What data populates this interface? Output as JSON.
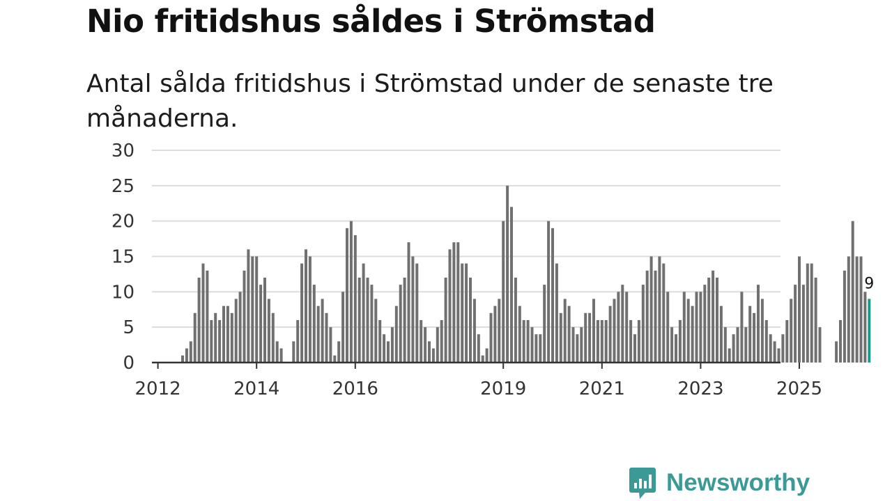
{
  "colors": {
    "bar": "#707070",
    "highlight": "#1d9a8f",
    "grid": "#dcdcdc",
    "axis": "#333333",
    "brand": "#3c9a96"
  },
  "brand": {
    "name": "Newsworthy",
    "icon": "bar-chart-speech-bubble-icon"
  },
  "chart_data": {
    "type": "bar",
    "title": "Nio fritidshus såldes i Strömstad",
    "subtitle": "Antal sålda fritidshus i Strömstad under de senaste tre månaderna.",
    "xlabel": "",
    "ylabel": "",
    "ylim": [
      0,
      30
    ],
    "yticks": [
      0,
      5,
      10,
      15,
      20,
      25,
      30
    ],
    "x_tick_labels": [
      "2012",
      "2014",
      "2016",
      "2019",
      "2021",
      "2023",
      "2025"
    ],
    "grid": true,
    "start_period": "2011-09",
    "frequency": "monthly",
    "highlight_label": "9",
    "values": [
      0,
      0,
      0,
      0,
      0,
      0,
      0,
      0,
      0,
      0,
      1,
      2,
      3,
      7,
      12,
      14,
      13,
      6,
      7,
      6,
      8,
      8,
      7,
      9,
      10,
      13,
      16,
      15,
      15,
      11,
      12,
      9,
      7,
      3,
      2,
      0,
      0,
      3,
      6,
      14,
      16,
      15,
      11,
      8,
      9,
      7,
      5,
      1,
      3,
      10,
      19,
      20,
      18,
      12,
      14,
      12,
      11,
      9,
      6,
      4,
      3,
      5,
      8,
      11,
      12,
      17,
      15,
      14,
      6,
      5,
      3,
      2,
      5,
      6,
      12,
      16,
      17,
      17,
      14,
      14,
      12,
      9,
      4,
      1,
      2,
      7,
      8,
      9,
      20,
      25,
      22,
      12,
      8,
      6,
      6,
      5,
      4,
      4,
      11,
      20,
      19,
      14,
      7,
      9,
      8,
      5,
      4,
      5,
      7,
      7,
      9,
      6,
      6,
      6,
      8,
      9,
      10,
      11,
      10,
      6,
      4,
      6,
      11,
      13,
      15,
      13,
      15,
      14,
      10,
      5,
      4,
      6,
      10,
      9,
      8,
      10,
      10,
      11,
      12,
      13,
      12,
      8,
      5,
      2,
      4,
      5,
      10,
      5,
      8,
      7,
      11,
      9,
      6,
      4,
      3,
      2,
      4,
      6,
      9,
      11,
      15,
      11,
      14,
      14,
      12,
      5,
      0,
      0,
      0,
      3,
      6,
      13,
      15,
      20,
      15,
      15,
      10,
      9
    ]
  }
}
